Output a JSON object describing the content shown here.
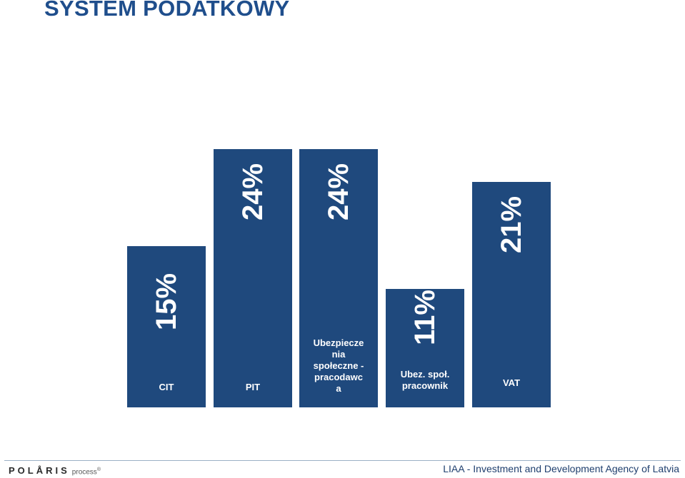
{
  "title": "SYSTEM PODATKOWY",
  "chart_data": {
    "type": "bar",
    "categories": [
      "CIT",
      "PIT",
      "Ubezpieczenia społeczne - pracodawca",
      "Ubez. społ. pracownik",
      "VAT"
    ],
    "values": [
      15,
      24,
      24,
      11,
      21
    ],
    "value_labels": [
      "15%",
      "24%",
      "24%",
      "11%",
      "21%"
    ],
    "category_labels_display": [
      "CIT",
      "PIT",
      "Ubezpiecze\nnia\nspołeczne -\npracodawc\na",
      "Ubez. społ.\npracownik",
      "VAT"
    ],
    "unit": "%",
    "ylim": [
      0,
      24
    ],
    "grid": false,
    "legend": "none",
    "bar_color": "#1f497d"
  },
  "footer": {
    "logo_main": "POLÅRIS",
    "logo_sub": "process",
    "logo_mark": "®",
    "agency": "LIAA - Investment and Development Agency of Latvia"
  }
}
